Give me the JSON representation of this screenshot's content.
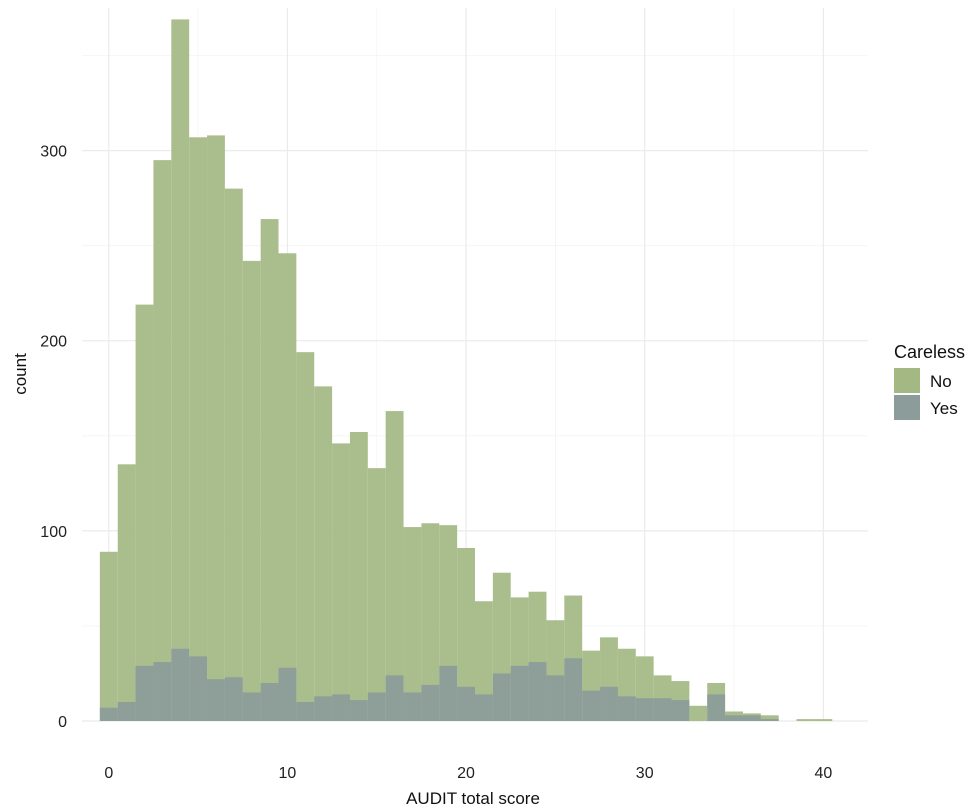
{
  "chart_data": {
    "type": "bar",
    "subtype": "overlapping-histogram",
    "title": "",
    "xlabel": "AUDIT total score",
    "ylabel": "count",
    "xlim": [
      -1.5,
      42.5
    ],
    "ylim": [
      0,
      375
    ],
    "xticks": [
      0,
      10,
      20,
      30,
      40
    ],
    "xtick_labels": [
      "0",
      "10",
      "20",
      "30",
      "40"
    ],
    "yticks": [
      0,
      100,
      200,
      300
    ],
    "ytick_labels": [
      "0",
      "100",
      "200",
      "300"
    ],
    "grid": true,
    "bin_width": 1,
    "bin_centers": [
      0,
      1,
      2,
      3,
      4,
      5,
      6,
      7,
      8,
      9,
      10,
      11,
      12,
      13,
      14,
      15,
      16,
      17,
      18,
      19,
      20,
      21,
      22,
      23,
      24,
      25,
      26,
      27,
      28,
      29,
      30,
      31,
      32,
      33,
      34,
      35,
      36,
      37,
      38,
      39,
      40
    ],
    "legend": {
      "title": "Careless",
      "position": "right"
    },
    "series": [
      {
        "name": "No",
        "color": "#a3b883",
        "values": [
          89,
          135,
          219,
          295,
          369,
          307,
          308,
          280,
          242,
          264,
          246,
          194,
          176,
          146,
          152,
          133,
          163,
          102,
          104,
          103,
          91,
          63,
          78,
          65,
          68,
          53,
          66,
          37,
          44,
          38,
          34,
          24,
          21,
          8,
          20,
          5,
          4,
          3,
          0,
          1,
          1
        ]
      },
      {
        "name": "Yes",
        "color": "#8c9c9a",
        "values": [
          7,
          10,
          29,
          31,
          38,
          34,
          22,
          23,
          15,
          20,
          28,
          10,
          13,
          14,
          11,
          15,
          24,
          15,
          19,
          29,
          18,
          14,
          25,
          29,
          31,
          24,
          33,
          16,
          18,
          13,
          12,
          12,
          11,
          0,
          14,
          3,
          3,
          1,
          0,
          0,
          0
        ]
      }
    ]
  }
}
